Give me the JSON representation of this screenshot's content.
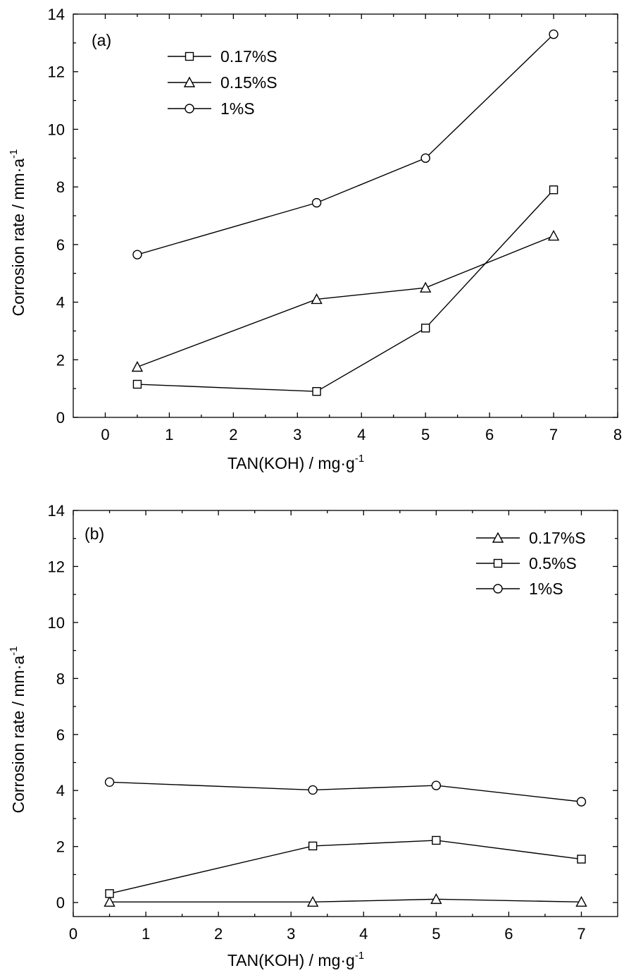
{
  "chart_data": [
    {
      "type": "line",
      "panel_label": "(a)",
      "xlabel": "TAN(KOH) / mg·g",
      "xlabel_sup": "-1",
      "ylabel": "Corrosion rate / mm·a",
      "ylabel_sup": "-1",
      "xlim": [
        -0.5,
        8
      ],
      "ylim": [
        0,
        14
      ],
      "xticks": [
        0,
        1,
        2,
        3,
        4,
        5,
        6,
        7,
        8
      ],
      "yticks": [
        0,
        2,
        4,
        6,
        8,
        10,
        12,
        14
      ],
      "x": [
        0.5,
        3.3,
        5,
        7
      ],
      "grid": false,
      "legend_position": "top-left",
      "series": [
        {
          "name": "0.17%S",
          "marker": "square",
          "values": [
            1.15,
            0.9,
            3.1,
            7.9
          ]
        },
        {
          "name": "0.15%S",
          "marker": "triangle",
          "values": [
            1.75,
            4.1,
            4.5,
            6.3
          ]
        },
        {
          "name": "1%S",
          "marker": "circle",
          "values": [
            5.65,
            7.45,
            9.0,
            13.3
          ]
        }
      ]
    },
    {
      "type": "line",
      "panel_label": "(b)",
      "xlabel": "TAN(KOH) / mg·g",
      "xlabel_sup": "-1",
      "ylabel": "Corrosion rate / mm·a",
      "ylabel_sup": "-1",
      "xlim": [
        0,
        7.5
      ],
      "ylim": [
        -0.5,
        14
      ],
      "xticks": [
        0,
        1,
        2,
        3,
        4,
        5,
        6,
        7
      ],
      "yticks": [
        0,
        2,
        4,
        6,
        8,
        10,
        12,
        14
      ],
      "x": [
        0.5,
        3.3,
        5,
        7
      ],
      "grid": false,
      "legend_position": "top-right",
      "series": [
        {
          "name": "0.17%S",
          "marker": "triangle",
          "values": [
            0.02,
            0.02,
            0.12,
            0.02
          ]
        },
        {
          "name": "0.5%S",
          "marker": "square",
          "values": [
            0.32,
            2.02,
            2.22,
            1.55
          ]
        },
        {
          "name": "1%S",
          "marker": "circle",
          "values": [
            4.3,
            4.02,
            4.18,
            3.6
          ]
        }
      ]
    }
  ]
}
